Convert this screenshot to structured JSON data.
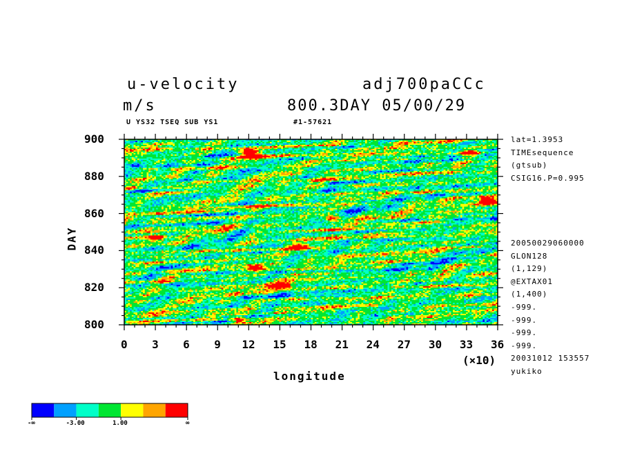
{
  "header": {
    "variable": "u-velocity",
    "units": "m/s",
    "dataset": "adj700paCCc",
    "time": "800.3DAY 05/00/29",
    "subtitle": "U YS32 TSEQ SUB YS1",
    "id_label": "#1-57621"
  },
  "side_info": {
    "top": [
      "lat=1.3953",
      "TIMEsequence",
      "(gtsub)",
      "CSIG16.P=0.995"
    ],
    "bottom": [
      "20050029060000",
      "GLON128",
      "(1,129)",
      "@EXTAX01",
      "(1,400)",
      "-999.",
      "-999.",
      "-999.",
      "-999.",
      "20031012 153557",
      "yukiko"
    ]
  },
  "colorbar": {
    "colors": [
      "#0000ff",
      "#00a0ff",
      "#00ffc8",
      "#00e632",
      "#ffff00",
      "#ffa500",
      "#ff0000"
    ],
    "labels": [
      "-∞",
      "-3.00",
      "1.00",
      "∞"
    ]
  },
  "chart_data": {
    "type": "heatmap",
    "title": "u-velocity",
    "xlabel": "longitude",
    "ylabel": "DAY",
    "x_scale_note": "(×10)",
    "xlim": [
      0,
      36
    ],
    "ylim": [
      800,
      900
    ],
    "x_ticks": [
      "0",
      "3",
      "6",
      "9",
      "12",
      "15",
      "18",
      "21",
      "24",
      "27",
      "30",
      "33",
      "36"
    ],
    "y_ticks": [
      "800",
      "820",
      "840",
      "860",
      "880",
      "900"
    ],
    "color_levels": [
      "-∞",
      "-3.00",
      "1.00",
      "∞"
    ],
    "red_maxima": [
      {
        "x": 12,
        "y": 894
      },
      {
        "x": 12,
        "y": 892
      },
      {
        "x": 16.8,
        "y": 842
      },
      {
        "x": 15.3,
        "y": 821
      },
      {
        "x": 11,
        "y": 803
      },
      {
        "x": 12.5,
        "y": 831
      },
      {
        "x": 35,
        "y": 867
      },
      {
        "x": 33,
        "y": 893
      },
      {
        "x": 3,
        "y": 847
      },
      {
        "x": 20,
        "y": 858
      }
    ]
  }
}
